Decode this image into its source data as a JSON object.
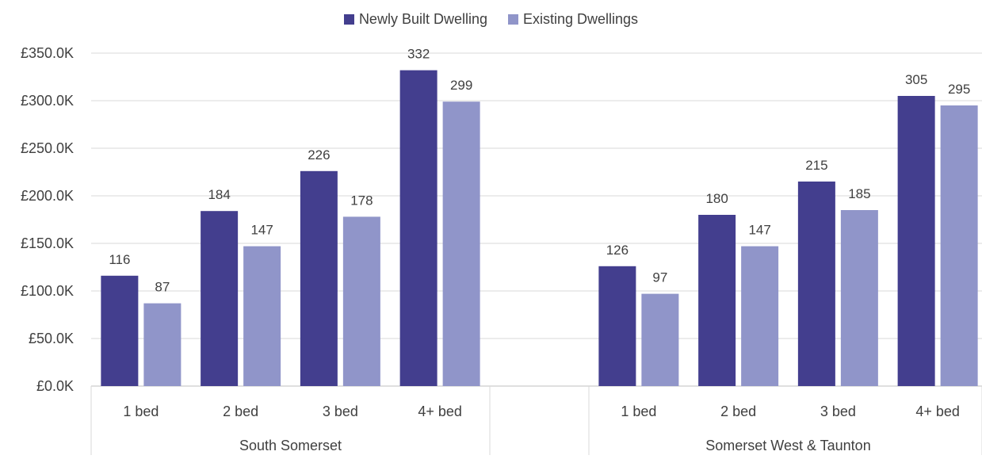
{
  "chart_data": {
    "type": "bar",
    "title": "",
    "xlabel": "",
    "ylabel": "",
    "ylim": [
      0,
      350
    ],
    "yticks": [
      0,
      50,
      100,
      150,
      200,
      250,
      300,
      350
    ],
    "ytick_labels": [
      "£0.0K",
      "£50.0K",
      "£100.0K",
      "£150.0K",
      "£200.0K",
      "£250.0K",
      "£300.0K",
      "£350.0K"
    ],
    "grid": true,
    "legend_position": "top-center",
    "groups": [
      {
        "name": "South Somerset",
        "categories": [
          "1 bed",
          "2 bed",
          "3 bed",
          "4+ bed"
        ],
        "series": [
          {
            "name": "Newly Built Dwelling",
            "values": [
              116,
              184,
              226,
              332
            ]
          },
          {
            "name": "Existing Dwellings",
            "values": [
              87,
              147,
              178,
              299
            ]
          }
        ]
      },
      {
        "name": "Somerset West & Taunton",
        "categories": [
          "1 bed",
          "2 bed",
          "3 bed",
          "4+ bed"
        ],
        "series": [
          {
            "name": "Newly Built Dwelling",
            "values": [
              126,
              180,
              215,
              305
            ]
          },
          {
            "name": "Existing Dwellings",
            "values": [
              97,
              147,
              185,
              295
            ]
          }
        ]
      }
    ],
    "colors": {
      "Newly Built Dwelling": "#433e8e",
      "Existing Dwellings": "#9095c9"
    }
  }
}
